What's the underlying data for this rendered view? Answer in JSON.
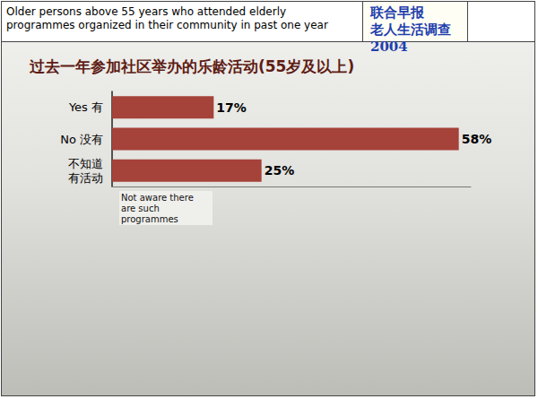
{
  "header": {
    "text": "Older persons above 55 years who attended elderly programmes organized in their community in past one year",
    "source": [
      "联合早报",
      "老人生活调查2004"
    ]
  },
  "chart_data": {
    "type": "bar",
    "title": "过去一年参加社区举办的乐龄活动(55岁及以上)",
    "categories": [
      "Yes 有",
      "No 没有",
      "不知道有活动"
    ],
    "values": [
      17,
      58,
      25
    ],
    "value_labels": [
      "17%",
      "58%",
      "25%"
    ],
    "color": "#a5423a",
    "orientation": "horizontal",
    "data_labels": true,
    "tick_labels": "y",
    "grid": false,
    "xlim": [
      0,
      60
    ],
    "annotations": [
      {
        "text": "Not aware there are such programmes",
        "category": "不知道有活动"
      }
    ]
  }
}
